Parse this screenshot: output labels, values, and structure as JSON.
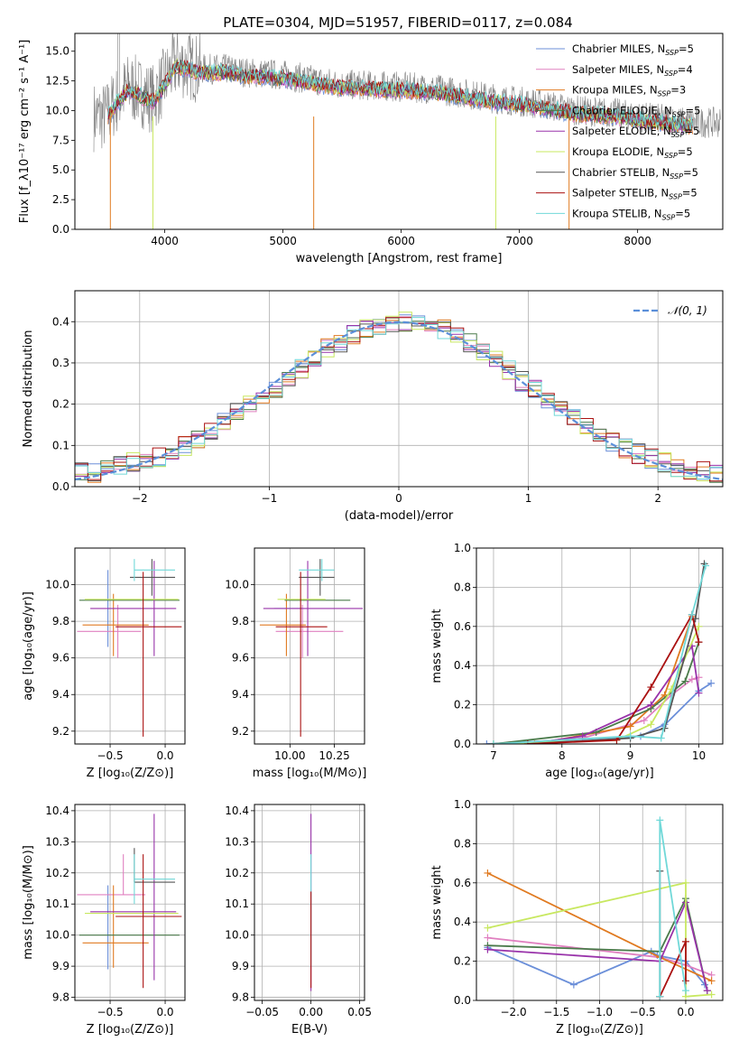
{
  "figure_title": "PLATE=0304, MJD=51957, FIBERID=0117, z=0.084",
  "colors": {
    "Chabrier MILES": "#6b8fd9",
    "Salpeter MILES": "#e080c0",
    "Kroupa MILES": "#e07a20",
    "Chabrier ELODIE": "#4a7a4a",
    "Salpeter ELODIE": "#9933aa",
    "Kroupa ELODIE": "#c8e860",
    "Chabrier STELIB": "#555555",
    "Salpeter STELIB": "#aa1111",
    "Kroupa STELIB": "#70d8d8",
    "normal_curve": "#5b8fd9",
    "data_spectrum": "#808080"
  },
  "chart_data": [
    {
      "id": "spectrum",
      "type": "line",
      "title": "PLATE=0304, MJD=51957, FIBERID=0117, z=0.084",
      "xlabel": "wavelength [Angstrom, rest frame]",
      "ylabel": "Flux [f_λ10⁻¹⁷ erg cm⁻² s⁻¹ A⁻¹]",
      "xlim": [
        3240,
        8720
      ],
      "ylim": [
        0,
        16.5
      ],
      "xticks": [
        4000,
        5000,
        6000,
        7000,
        8000
      ],
      "yticks": [
        0.0,
        2.5,
        5.0,
        7.5,
        10.0,
        12.5,
        15.0
      ],
      "grid": false,
      "legend_position": "top-right",
      "legend": [
        {
          "model": "Chabrier MILES",
          "base": "Chabrier MILES, N",
          "sub": "SSP",
          "tail": "=5"
        },
        {
          "model": "Salpeter MILES",
          "base": "Salpeter MILES, N",
          "sub": "SSP",
          "tail": "=4"
        },
        {
          "model": "Kroupa MILES",
          "base": "Kroupa MILES, N",
          "sub": "SSP",
          "tail": "=3"
        },
        {
          "model": "Chabrier ELODIE",
          "base": "Chabrier ELODIE, N",
          "sub": "SSP",
          "tail": "=5"
        },
        {
          "model": "Salpeter ELODIE",
          "base": "Salpeter ELODIE, N",
          "sub": "SSP",
          "tail": "=5"
        },
        {
          "model": "Kroupa ELODIE",
          "base": "Kroupa ELODIE, N",
          "sub": "SSP",
          "tail": "=5"
        },
        {
          "model": "Chabrier STELIB",
          "base": "Chabrier STELIB, N",
          "sub": "SSP",
          "tail": "=5"
        },
        {
          "model": "Salpeter STELIB",
          "base": "Salpeter STELIB, N",
          "sub": "SSP",
          "tail": "=5"
        },
        {
          "model": "Kroupa STELIB",
          "base": "Kroupa STELIB, N",
          "sub": "SSP",
          "tail": "=5"
        }
      ],
      "continuum": {
        "x": [
          3500,
          3600,
          3700,
          3800,
          3900,
          4000,
          4100,
          4200,
          4300,
          4500,
          4700,
          5000,
          5300,
          5500,
          6000,
          6300,
          6500,
          6800,
          7000,
          7200,
          7500,
          7800,
          8000,
          8200,
          8400,
          8500
        ],
        "y": [
          9.5,
          11.0,
          12.0,
          11.5,
          11.0,
          12.5,
          14.0,
          13.8,
          13.5,
          13.5,
          13.2,
          13.0,
          12.5,
          12.2,
          12.0,
          11.8,
          11.5,
          11.0,
          10.8,
          10.5,
          10.0,
          9.8,
          9.5,
          9.3,
          9.0,
          9.0
        ]
      },
      "data_x_range": [
        3400,
        8700
      ],
      "model_x_range": [
        3520,
        8470
      ]
    },
    {
      "id": "residuals",
      "type": "area",
      "xlabel": "(data-model)/error",
      "ylabel": "Normed distribution",
      "xlim": [
        -2.5,
        2.5
      ],
      "ylim": [
        0,
        0.475
      ],
      "xticks": [
        -2,
        -1,
        0,
        1,
        2
      ],
      "yticks": [
        0.0,
        0.1,
        0.2,
        0.3,
        0.4
      ],
      "grid": true,
      "legend_position": "top-right",
      "legend_label": "𝒩(0, 1)",
      "bin_width": 0.1,
      "bin_start": -2.5,
      "histogram": [
        0.033,
        0.035,
        0.042,
        0.048,
        0.058,
        0.068,
        0.073,
        0.085,
        0.1,
        0.118,
        0.14,
        0.155,
        0.18,
        0.195,
        0.21,
        0.24,
        0.26,
        0.285,
        0.31,
        0.335,
        0.35,
        0.37,
        0.385,
        0.39,
        0.395,
        0.4,
        0.395,
        0.39,
        0.38,
        0.36,
        0.35,
        0.33,
        0.305,
        0.28,
        0.255,
        0.235,
        0.215,
        0.185,
        0.165,
        0.145,
        0.125,
        0.11,
        0.095,
        0.08,
        0.068,
        0.058,
        0.048,
        0.042,
        0.038,
        0.035
      ]
    },
    {
      "id": "age-vs-Z",
      "type": "scatter",
      "xlabel": "Z [log₁₀(Z/Z⊙)]",
      "ylabel": "age  [log₁₀(age/yr)]",
      "xlim": [
        -0.82,
        0.18
      ],
      "ylim": [
        9.13,
        10.2
      ],
      "xticks": [
        -0.5,
        0.0
      ],
      "yticks": [
        9.2,
        9.4,
        9.6,
        9.8,
        10.0
      ],
      "grid": true,
      "points": [
        {
          "model": "Chabrier MILES",
          "x": -0.52,
          "xerr": [
            0.0,
            0.0
          ],
          "y": 9.87,
          "yerr": [
            0.21,
            0.21
          ]
        },
        {
          "model": "Salpeter MILES",
          "x": -0.43,
          "xerr": [
            0.37,
            0.21
          ],
          "y": 9.745,
          "yerr": [
            0.145,
            0.145
          ]
        },
        {
          "model": "Kroupa MILES",
          "x": -0.47,
          "xerr": [
            0.28,
            0.32
          ],
          "y": 9.78,
          "yerr": [
            0.17,
            0.17
          ]
        },
        {
          "model": "Chabrier ELODIE",
          "x": -0.3,
          "xerr": [
            0.48,
            0.43
          ],
          "y": 9.915,
          "yerr": [
            0.0,
            0.0
          ]
        },
        {
          "model": "Salpeter ELODIE",
          "x": -0.1,
          "xerr": [
            0.58,
            0.2
          ],
          "y": 9.87,
          "yerr": [
            0.26,
            0.26
          ]
        },
        {
          "model": "Kroupa ELODIE",
          "x": -0.35,
          "xerr": [
            0.38,
            0.47
          ],
          "y": 9.92,
          "yerr": [
            0.0,
            0.0
          ]
        },
        {
          "model": "Chabrier STELIB",
          "x": -0.12,
          "xerr": [
            0.2,
            0.21
          ],
          "y": 10.04,
          "yerr": [
            0.1,
            0.1
          ]
        },
        {
          "model": "Salpeter STELIB",
          "x": -0.2,
          "xerr": [
            0.25,
            0.35
          ],
          "y": 9.77,
          "yerr": [
            0.6,
            0.3
          ]
        },
        {
          "model": "Kroupa STELIB",
          "x": -0.28,
          "xerr": [
            0.0,
            0.37
          ],
          "y": 10.08,
          "yerr": [
            0.06,
            0.06
          ]
        }
      ]
    },
    {
      "id": "age-vs-mass",
      "type": "scatter",
      "xlabel": "mass [log₁₀(M/M⊙)]",
      "ylabel": "",
      "xlim": [
        9.8,
        10.42
      ],
      "ylim": [
        9.13,
        10.2
      ],
      "xticks": [
        10.0,
        10.25
      ],
      "yticks": [
        9.2,
        9.4,
        9.6,
        9.8,
        10.0
      ],
      "grid": true,
      "points": [
        {
          "model": "Chabrier MILES",
          "x": 9.99,
          "xerr": [
            0.08,
            0.08
          ],
          "y": 9.87,
          "yerr": [
            0.0,
            0.0
          ]
        },
        {
          "model": "Salpeter MILES",
          "x": 10.07,
          "xerr": [
            0.15,
            0.23
          ],
          "y": 9.745,
          "yerr": [
            0.145,
            0.145
          ]
        },
        {
          "model": "Kroupa MILES",
          "x": 9.98,
          "xerr": [
            0.15,
            0.11
          ],
          "y": 9.78,
          "yerr": [
            0.17,
            0.17
          ]
        },
        {
          "model": "Chabrier ELODIE",
          "x": 10.07,
          "xerr": [
            0.1,
            0.27
          ],
          "y": 9.915,
          "yerr": [
            0.0,
            0.0
          ]
        },
        {
          "model": "Salpeter ELODIE",
          "x": 10.1,
          "xerr": [
            0.25,
            0.31
          ],
          "y": 9.87,
          "yerr": [
            0.26,
            0.26
          ]
        },
        {
          "model": "Kroupa ELODIE",
          "x": 10.05,
          "xerr": [
            0.12,
            0.15
          ],
          "y": 9.92,
          "yerr": [
            0.0,
            0.0
          ]
        },
        {
          "model": "Chabrier STELIB",
          "x": 10.17,
          "xerr": [
            0.12,
            0.08
          ],
          "y": 10.04,
          "yerr": [
            0.1,
            0.1
          ]
        },
        {
          "model": "Salpeter STELIB",
          "x": 10.06,
          "xerr": [
            0.14,
            0.15
          ],
          "y": 9.77,
          "yerr": [
            0.6,
            0.3
          ]
        },
        {
          "model": "Kroupa STELIB",
          "x": 10.18,
          "xerr": [
            0.13,
            0.07
          ],
          "y": 10.08,
          "yerr": [
            0.06,
            0.06
          ]
        }
      ]
    },
    {
      "id": "mass-weight-vs-age",
      "type": "line",
      "xlabel": "age  [log₁₀(age/yr)]",
      "ylabel": "mass weight",
      "xlim": [
        6.75,
        10.35
      ],
      "ylim": [
        0,
        1.0
      ],
      "xticks": [
        7,
        8,
        9,
        10
      ],
      "yticks": [
        0.0,
        0.2,
        0.4,
        0.6,
        0.8,
        1.0
      ],
      "grid": true,
      "series": [
        {
          "model": "Chabrier MILES",
          "x": [
            6.9,
            9.15,
            9.5,
            9.48,
            10.0,
            10.18
          ],
          "y": [
            0.0,
            0.04,
            0.1,
            0.09,
            0.27,
            0.31
          ]
        },
        {
          "model": "Salpeter MILES",
          "x": [
            7.5,
            8.3,
            9.2,
            9.6,
            9.9,
            10.0
          ],
          "y": [
            0.0,
            0.03,
            0.12,
            0.25,
            0.33,
            0.34
          ]
        },
        {
          "model": "Kroupa MILES",
          "x": [
            7.6,
            9.0,
            9.5,
            9.9
          ],
          "y": [
            0.0,
            0.09,
            0.25,
            0.65
          ]
        },
        {
          "model": "Chabrier ELODIE",
          "x": [
            7.0,
            8.5,
            9.3,
            9.8,
            10.0
          ],
          "y": [
            0.0,
            0.06,
            0.18,
            0.32,
            0.52
          ]
        },
        {
          "model": "Salpeter ELODIE",
          "x": [
            7.5,
            8.3,
            9.3,
            9.9,
            10.0
          ],
          "y": [
            0.0,
            0.04,
            0.2,
            0.5,
            0.26
          ]
        },
        {
          "model": "Kroupa ELODIE",
          "x": [
            7.0,
            8.8,
            9.3,
            9.6,
            10.0
          ],
          "y": [
            0.0,
            0.02,
            0.1,
            0.28,
            0.6
          ]
        },
        {
          "model": "Chabrier STELIB",
          "x": [
            7.5,
            9.0,
            9.5,
            9.95,
            10.08
          ],
          "y": [
            0.0,
            0.03,
            0.08,
            0.64,
            0.92
          ]
        },
        {
          "model": "Salpeter STELIB",
          "x": [
            7.5,
            8.8,
            9.3,
            9.9,
            10.0
          ],
          "y": [
            0.0,
            0.02,
            0.29,
            0.66,
            0.52
          ]
        },
        {
          "model": "Kroupa STELIB",
          "x": [
            7.0,
            9.0,
            9.45,
            9.9,
            10.1
          ],
          "y": [
            0.0,
            0.04,
            0.03,
            0.66,
            0.91
          ]
        }
      ]
    },
    {
      "id": "mass-vs-Z",
      "type": "scatter",
      "xlabel": "Z [log₁₀(Z/Z⊙)]",
      "ylabel": "mass [log₁₀(M/M⊙)]",
      "xlim": [
        -0.82,
        0.18
      ],
      "ylim": [
        9.79,
        10.42
      ],
      "xticks": [
        -0.5,
        0.0
      ],
      "yticks": [
        9.8,
        9.9,
        10.0,
        10.1,
        10.2,
        10.3,
        10.4
      ],
      "grid": true,
      "points": [
        {
          "model": "Chabrier MILES",
          "x": -0.52,
          "xerr": [
            0.0,
            0.0
          ],
          "y": 10.02,
          "yerr": [
            0.13,
            0.14
          ]
        },
        {
          "model": "Salpeter MILES",
          "x": -0.38,
          "xerr": [
            0.42,
            0.2
          ],
          "y": 10.13,
          "yerr": [
            0.0,
            0.13
          ]
        },
        {
          "model": "Kroupa MILES",
          "x": -0.47,
          "xerr": [
            0.28,
            0.32
          ],
          "y": 9.975,
          "yerr": [
            0.08,
            0.185
          ]
        },
        {
          "model": "Chabrier ELODIE",
          "x": -0.3,
          "xerr": [
            0.48,
            0.43
          ],
          "y": 10.0,
          "yerr": [
            0.0,
            0.0
          ]
        },
        {
          "model": "Salpeter ELODIE",
          "x": -0.1,
          "xerr": [
            0.58,
            0.2
          ],
          "y": 10.075,
          "yerr": [
            0.22,
            0.315
          ]
        },
        {
          "model": "Kroupa ELODIE",
          "x": -0.35,
          "xerr": [
            0.38,
            0.47
          ],
          "y": 10.07,
          "yerr": [
            0.0,
            0.0
          ]
        },
        {
          "model": "Chabrier STELIB",
          "x": -0.28,
          "xerr": [
            0.0,
            0.37
          ],
          "y": 10.17,
          "yerr": [
            0.0,
            0.11
          ]
        },
        {
          "model": "Salpeter STELIB",
          "x": -0.2,
          "xerr": [
            0.25,
            0.35
          ],
          "y": 10.06,
          "yerr": [
            0.23,
            0.2
          ]
        },
        {
          "model": "Kroupa STELIB",
          "x": -0.28,
          "xerr": [
            0.0,
            0.37
          ],
          "y": 10.18,
          "yerr": [
            0.08,
            0.08
          ]
        }
      ]
    },
    {
      "id": "mass-vs-EBV",
      "type": "scatter",
      "xlabel": "E(B-V)",
      "ylabel": "",
      "xlim": [
        -0.058,
        0.055
      ],
      "ylim": [
        9.79,
        10.42
      ],
      "xticks": [
        -0.05,
        0.0,
        0.05
      ],
      "yticks": [
        9.8,
        9.9,
        10.0,
        10.1,
        10.2,
        10.3,
        10.4
      ],
      "grid": true,
      "points": [
        {
          "model": "Salpeter ELODIE",
          "x": 0.0,
          "xerr": [
            0.0,
            0.0
          ],
          "y": 10.1,
          "yerr": [
            0.28,
            0.29
          ]
        },
        {
          "model": "Kroupa STELIB",
          "x": 0.0,
          "xerr": [
            0.0,
            0.0
          ],
          "y": 10.12,
          "yerr": [
            0.22,
            0.14
          ]
        },
        {
          "model": "Salpeter STELIB",
          "x": 0.0,
          "xerr": [
            0.0,
            0.0
          ],
          "y": 10.06,
          "yerr": [
            0.23,
            0.08
          ]
        }
      ]
    },
    {
      "id": "mass-weight-vs-Z",
      "type": "line",
      "xlabel": "Z [log₁₀(Z/Z⊙)]",
      "ylabel": "mass weight",
      "xlim": [
        -2.43,
        0.43
      ],
      "ylim": [
        0,
        1.0
      ],
      "xticks": [
        -2.0,
        -1.5,
        -1.0,
        -0.5,
        0.0
      ],
      "yticks": [
        0.0,
        0.2,
        0.4,
        0.6,
        0.8,
        1.0
      ],
      "grid": true,
      "series": [
        {
          "model": "Chabrier MILES",
          "x": [
            -2.3,
            -1.3,
            -0.4,
            -0.33,
            0.0,
            0.22
          ],
          "y": [
            0.27,
            0.08,
            0.25,
            0.23,
            0.2,
            0.08
          ]
        },
        {
          "model": "Salpeter MILES",
          "x": [
            -2.3,
            -0.3,
            0.0,
            0.3
          ],
          "y": [
            0.32,
            0.22,
            0.18,
            0.13
          ]
        },
        {
          "model": "Kroupa MILES",
          "x": [
            -2.3,
            -0.3,
            0.3
          ],
          "y": [
            0.65,
            0.22,
            0.1
          ]
        },
        {
          "model": "Chabrier ELODIE",
          "x": [
            -2.3,
            -0.3,
            0.0,
            0.25
          ],
          "y": [
            0.28,
            0.25,
            0.52,
            0.05
          ]
        },
        {
          "model": "Salpeter ELODIE",
          "x": [
            -2.3,
            -0.3,
            0.0,
            0.25
          ],
          "y": [
            0.26,
            0.2,
            0.5,
            0.05
          ]
        },
        {
          "model": "Kroupa ELODIE",
          "x": [
            -2.3,
            0.0,
            0.0,
            0.3
          ],
          "y": [
            0.37,
            0.6,
            0.02,
            0.03
          ]
        },
        {
          "model": "Chabrier STELIB",
          "x": [
            -0.3,
            -0.3
          ],
          "y": [
            0.02,
            0.66
          ]
        },
        {
          "model": "Salpeter STELIB",
          "x": [
            -0.3,
            0.0,
            0.0
          ],
          "y": [
            0.02,
            0.3,
            0.1
          ]
        },
        {
          "model": "Kroupa STELIB",
          "x": [
            -0.3,
            -0.3,
            0.0
          ],
          "y": [
            0.02,
            0.92,
            0.05
          ]
        }
      ]
    }
  ]
}
